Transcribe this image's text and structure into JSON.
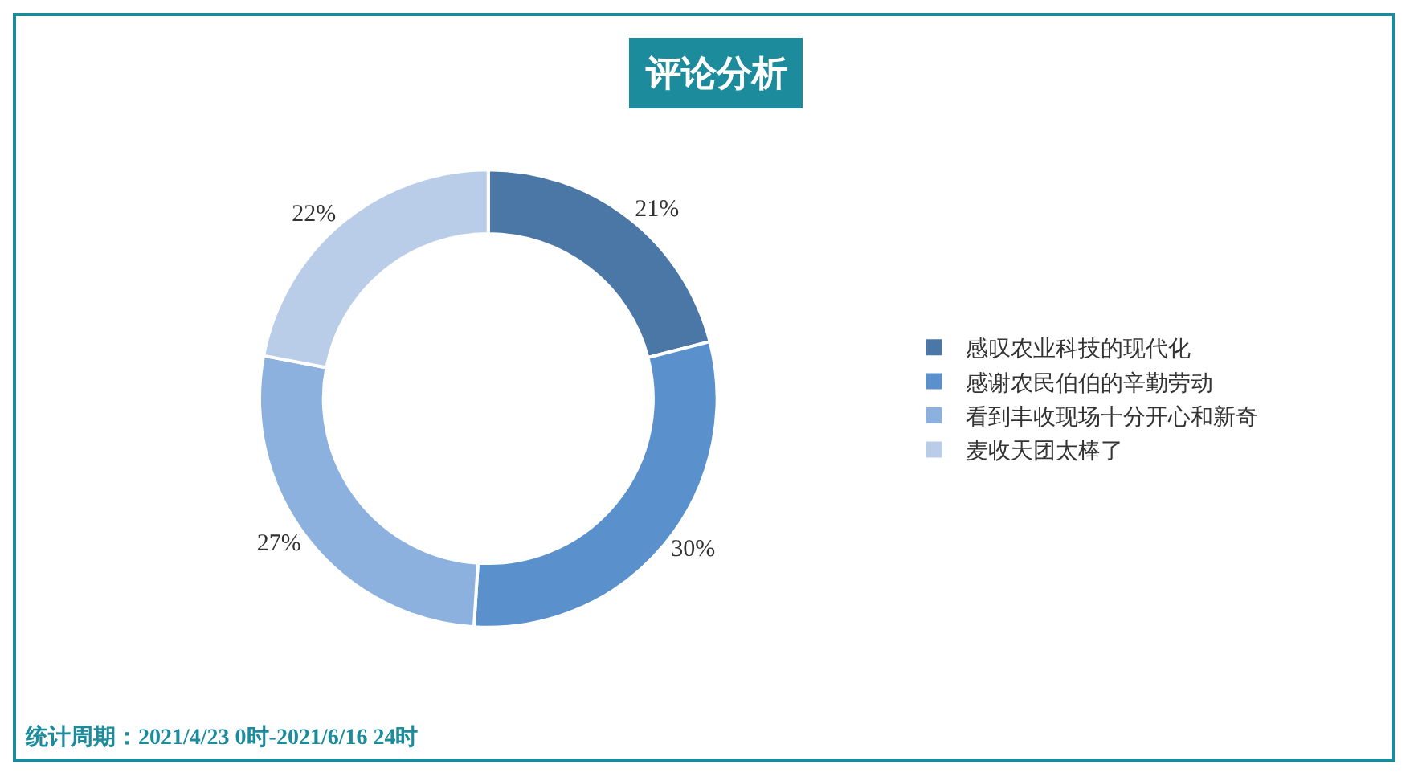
{
  "chart_data": {
    "type": "donut",
    "title": "评论分析",
    "categories": [
      "感叹农业科技的现代化",
      "感谢农民伯伯的辛勤劳动",
      "看到丰收现场十分开心和新奇",
      "麦收天团太棒了"
    ],
    "values": [
      21,
      30,
      27,
      22
    ],
    "colors": [
      "#4a77a6",
      "#5a90cb",
      "#8db1de",
      "#b9cde9"
    ],
    "value_labels": [
      "21%",
      "30%",
      "27%",
      "22%"
    ],
    "legend": "right",
    "annotations": [
      "统计周期：2021/4/23 0时-2021/6/16 24时"
    ]
  }
}
